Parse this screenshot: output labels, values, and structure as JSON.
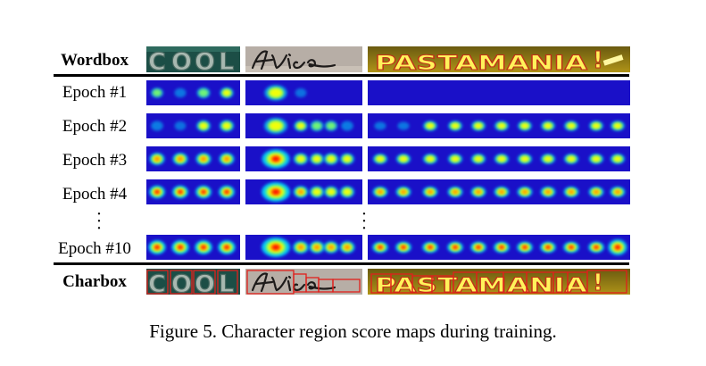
{
  "rows": [
    {
      "label": "Wordbox",
      "kind": "image",
      "bold": true
    },
    {
      "label": "Epoch #1",
      "kind": "heat",
      "level": 1
    },
    {
      "label": "Epoch #2",
      "kind": "heat",
      "level": 2
    },
    {
      "label": "Epoch #3",
      "kind": "heat",
      "level": 3
    },
    {
      "label": "Epoch #4",
      "kind": "heat",
      "level": 4
    },
    {
      "label": "",
      "kind": "dots"
    },
    {
      "label": "Epoch #10",
      "kind": "heat",
      "level": 10
    },
    {
      "label": "Charbox",
      "kind": "image",
      "bold": true
    }
  ],
  "columns": [
    {
      "word": "COOL"
    },
    {
      "word": "Alice"
    },
    {
      "word": "PASTAMANIA!"
    }
  ],
  "caption": "Figure 5. Character region score maps during training.",
  "colors": {
    "heat_background": "#1a10c8",
    "heat_low": "#00e5ff",
    "heat_mid": "#ffff00",
    "heat_high": "#ff0000",
    "charbox_outline": "#e0201c"
  }
}
